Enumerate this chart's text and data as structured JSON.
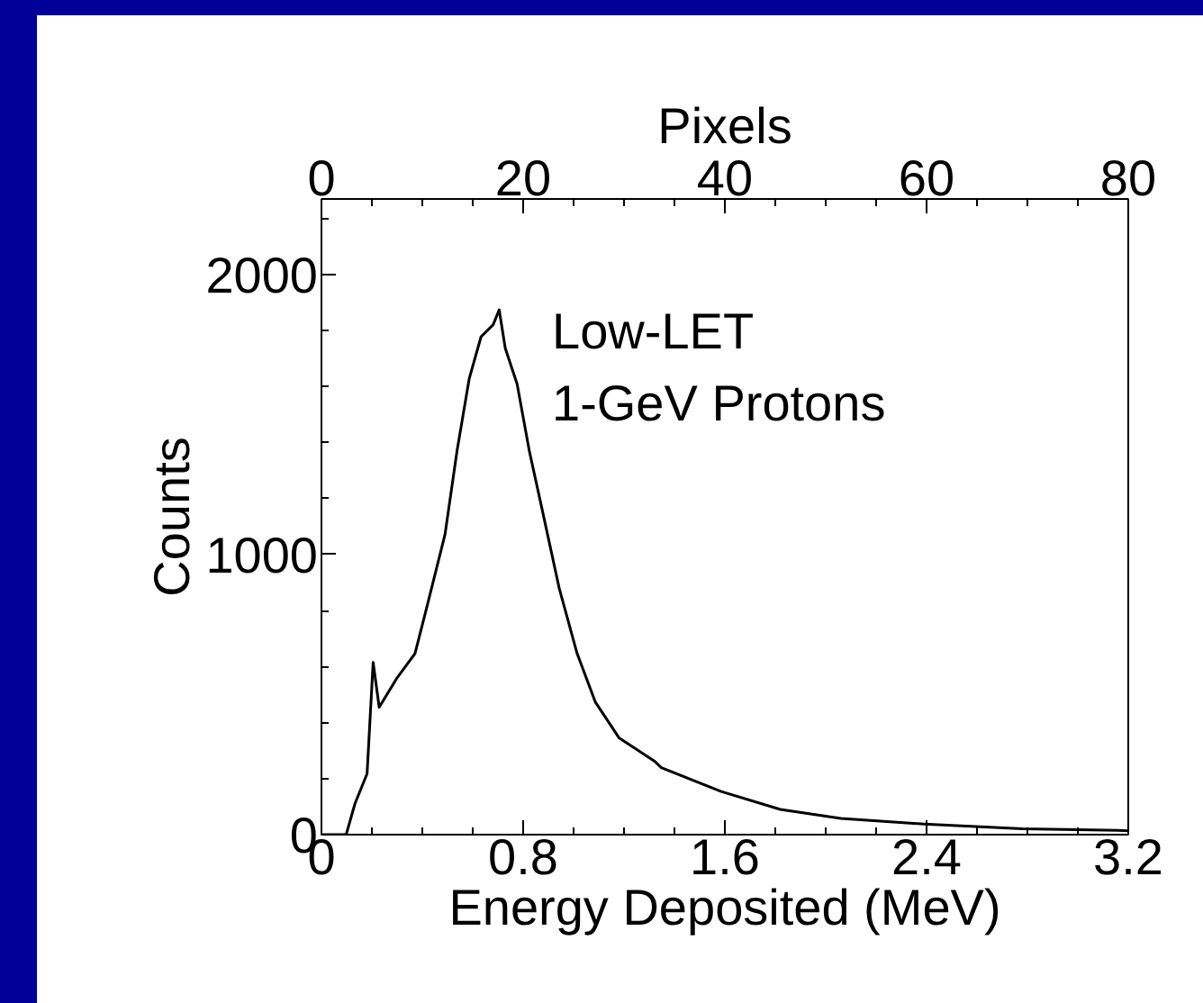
{
  "chart_data": {
    "type": "line",
    "xlabel": "Energy Deposited (MeV)",
    "ylabel": "Counts",
    "x2label": "Pixels",
    "annotations": [
      "Low-LET",
      "1-GeV Protons"
    ],
    "x": [
      0,
      0.098,
      0.133,
      0.181,
      0.205,
      0.229,
      0.3,
      0.371,
      0.419,
      0.49,
      0.538,
      0.586,
      0.633,
      0.681,
      0.705,
      0.729,
      0.776,
      0.824,
      0.871,
      0.943,
      1.014,
      1.086,
      1.18,
      1.32,
      1.348,
      1.586,
      1.82,
      2.06,
      2.39,
      2.78,
      3.16,
      3.2
    ],
    "series": [
      {
        "color": "#000000",
        "values": [
          0,
          0,
          111,
          218,
          615,
          455,
          560,
          647,
          816,
          1072,
          1372,
          1628,
          1778,
          1821,
          1874,
          1737,
          1609,
          1372,
          1179,
          880,
          647,
          474,
          346,
          263,
          239,
          154,
          90,
          58,
          38,
          21,
          15,
          14
        ]
      }
    ],
    "xlim": [
      0,
      3.2
    ],
    "xticks": [
      0,
      0.8,
      1.6,
      2.4,
      3.2
    ],
    "ylim": [
      0,
      2270
    ],
    "yticks": [
      0,
      1000,
      2000
    ],
    "x2lim": [
      0,
      80
    ],
    "x2ticks": [
      0,
      20,
      40,
      60,
      80
    ],
    "grid": false,
    "marker": "none",
    "line_style": "solid"
  }
}
